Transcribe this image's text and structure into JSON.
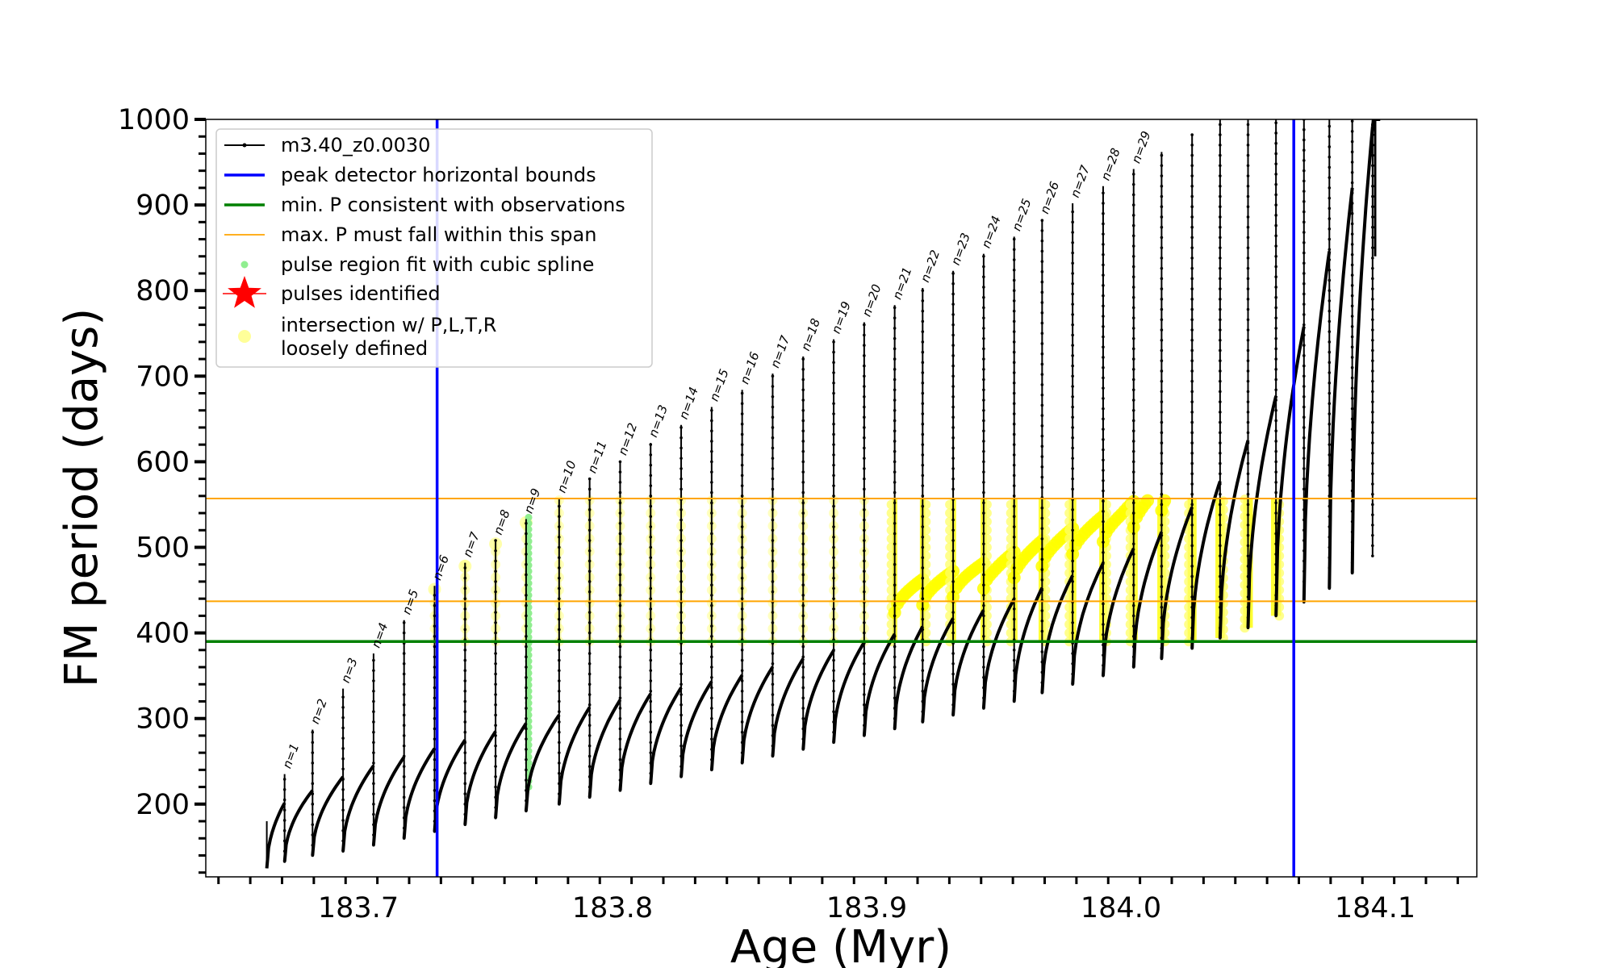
{
  "chart_data": {
    "type": "line",
    "title": "",
    "xlabel": "Age (Myr)",
    "ylabel": "FM period (days)",
    "xlim": [
      183.64,
      184.14
    ],
    "ylim": [
      115,
      1000
    ],
    "x_ticks": [
      183.7,
      183.8,
      183.9,
      184.0,
      184.1
    ],
    "x_tick_labels": [
      "183.7",
      "183.8",
      "183.9",
      "184.0",
      "184.1"
    ],
    "y_ticks": [
      200,
      300,
      400,
      500,
      600,
      700,
      800,
      900,
      1000
    ],
    "y_tick_labels": [
      "200",
      "300",
      "400",
      "500",
      "600",
      "700",
      "800",
      "900",
      "1000"
    ],
    "legend_position": "top-left",
    "legend": [
      {
        "label": "m3.40_z0.0030",
        "color": "#000000",
        "kind": "line-marker"
      },
      {
        "label": "peak detector horizontal bounds",
        "color": "#0000ff",
        "kind": "line"
      },
      {
        "label": "min. P consistent with observations",
        "color": "#008000",
        "kind": "line"
      },
      {
        "label": "max. P must fall within this span",
        "color": "#ffa500",
        "kind": "thin-line"
      },
      {
        "label": "pulse region fit with cubic spline",
        "color": "#90ee90",
        "kind": "dot"
      },
      {
        "label": "pulses identified",
        "color": "#ff0000",
        "kind": "star"
      },
      {
        "label": "intersection w/ P,L,T,R\nloosely defined",
        "color": "#ffff99",
        "kind": "circle"
      }
    ],
    "reference_lines": {
      "peak_detector_bounds_x": [
        183.731,
        184.068
      ],
      "min_period_y": 390,
      "max_period_span_y": [
        437,
        557
      ]
    },
    "pulses": [
      {
        "n": 1,
        "age": 183.671,
        "peak_period": 235,
        "base_period": 133
      },
      {
        "n": 2,
        "age": 183.682,
        "peak_period": 287,
        "base_period": 140
      },
      {
        "n": 3,
        "age": 183.694,
        "peak_period": 335,
        "base_period": 145
      },
      {
        "n": 4,
        "age": 183.706,
        "peak_period": 376,
        "base_period": 152
      },
      {
        "n": 5,
        "age": 183.718,
        "peak_period": 415,
        "base_period": 160
      },
      {
        "n": 6,
        "age": 183.73,
        "peak_period": 455,
        "base_period": 168
      },
      {
        "n": 7,
        "age": 183.742,
        "peak_period": 482,
        "base_period": 176
      },
      {
        "n": 8,
        "age": 183.754,
        "peak_period": 508,
        "base_period": 184
      },
      {
        "n": 9,
        "age": 183.766,
        "peak_period": 533,
        "base_period": 192
      },
      {
        "n": 10,
        "age": 183.779,
        "peak_period": 557,
        "base_period": 200
      },
      {
        "n": 11,
        "age": 183.791,
        "peak_period": 580,
        "base_period": 208
      },
      {
        "n": 12,
        "age": 183.803,
        "peak_period": 601,
        "base_period": 216
      },
      {
        "n": 13,
        "age": 183.815,
        "peak_period": 622,
        "base_period": 224
      },
      {
        "n": 14,
        "age": 183.827,
        "peak_period": 643,
        "base_period": 232
      },
      {
        "n": 15,
        "age": 183.839,
        "peak_period": 664,
        "base_period": 240
      },
      {
        "n": 16,
        "age": 183.851,
        "peak_period": 684,
        "base_period": 248
      },
      {
        "n": 17,
        "age": 183.863,
        "peak_period": 703,
        "base_period": 256
      },
      {
        "n": 18,
        "age": 183.875,
        "peak_period": 723,
        "base_period": 264
      },
      {
        "n": 19,
        "age": 183.887,
        "peak_period": 743,
        "base_period": 272
      },
      {
        "n": 20,
        "age": 183.899,
        "peak_period": 763,
        "base_period": 280
      },
      {
        "n": 21,
        "age": 183.911,
        "peak_period": 783,
        "base_period": 288
      },
      {
        "n": 22,
        "age": 183.922,
        "peak_period": 803,
        "base_period": 296
      },
      {
        "n": 23,
        "age": 183.934,
        "peak_period": 823,
        "base_period": 304
      },
      {
        "n": 24,
        "age": 183.946,
        "peak_period": 843,
        "base_period": 312
      },
      {
        "n": 25,
        "age": 183.958,
        "peak_period": 863,
        "base_period": 320
      },
      {
        "n": 26,
        "age": 183.969,
        "peak_period": 883,
        "base_period": 330
      },
      {
        "n": 27,
        "age": 183.981,
        "peak_period": 902,
        "base_period": 340
      },
      {
        "n": 28,
        "age": 183.993,
        "peak_period": 922,
        "base_period": 350
      },
      {
        "n": 29,
        "age": 184.005,
        "peak_period": 942,
        "base_period": 360
      },
      {
        "age": 184.016,
        "peak_period": 962,
        "base_period": 370
      },
      {
        "age": 184.028,
        "peak_period": 982,
        "base_period": 382
      },
      {
        "age": 184.039,
        "peak_period": 1000,
        "base_period": 394
      },
      {
        "age": 184.05,
        "peak_period": 1000,
        "base_period": 406
      },
      {
        "age": 184.061,
        "peak_period": 1000,
        "base_period": 420
      },
      {
        "age": 184.072,
        "peak_period": 1000,
        "base_period": 436
      },
      {
        "age": 184.082,
        "peak_period": 1000,
        "base_period": 452
      },
      {
        "age": 184.091,
        "peak_period": 1000,
        "base_period": 470
      },
      {
        "age": 184.099,
        "peak_period": 1000,
        "base_period": 490
      }
    ],
    "baseline": {
      "ages": [
        183.664,
        183.67,
        183.7,
        183.73,
        183.76,
        183.8,
        183.85,
        183.9,
        183.95,
        184.0,
        184.02,
        184.04,
        184.06,
        184.07,
        184.08,
        184.09,
        184.095,
        184.1
      ],
      "periods": [
        125,
        200,
        240,
        265,
        290,
        320,
        350,
        390,
        430,
        490,
        525,
        580,
        670,
        740,
        830,
        910,
        960,
        1000
      ]
    },
    "spline_fit_pulse": {
      "age": 183.767,
      "period_range": [
        220,
        535
      ]
    },
    "loosely_defined_intersections": {
      "age_range": [
        183.73,
        184.07
      ],
      "period_range": [
        390,
        557
      ]
    }
  }
}
